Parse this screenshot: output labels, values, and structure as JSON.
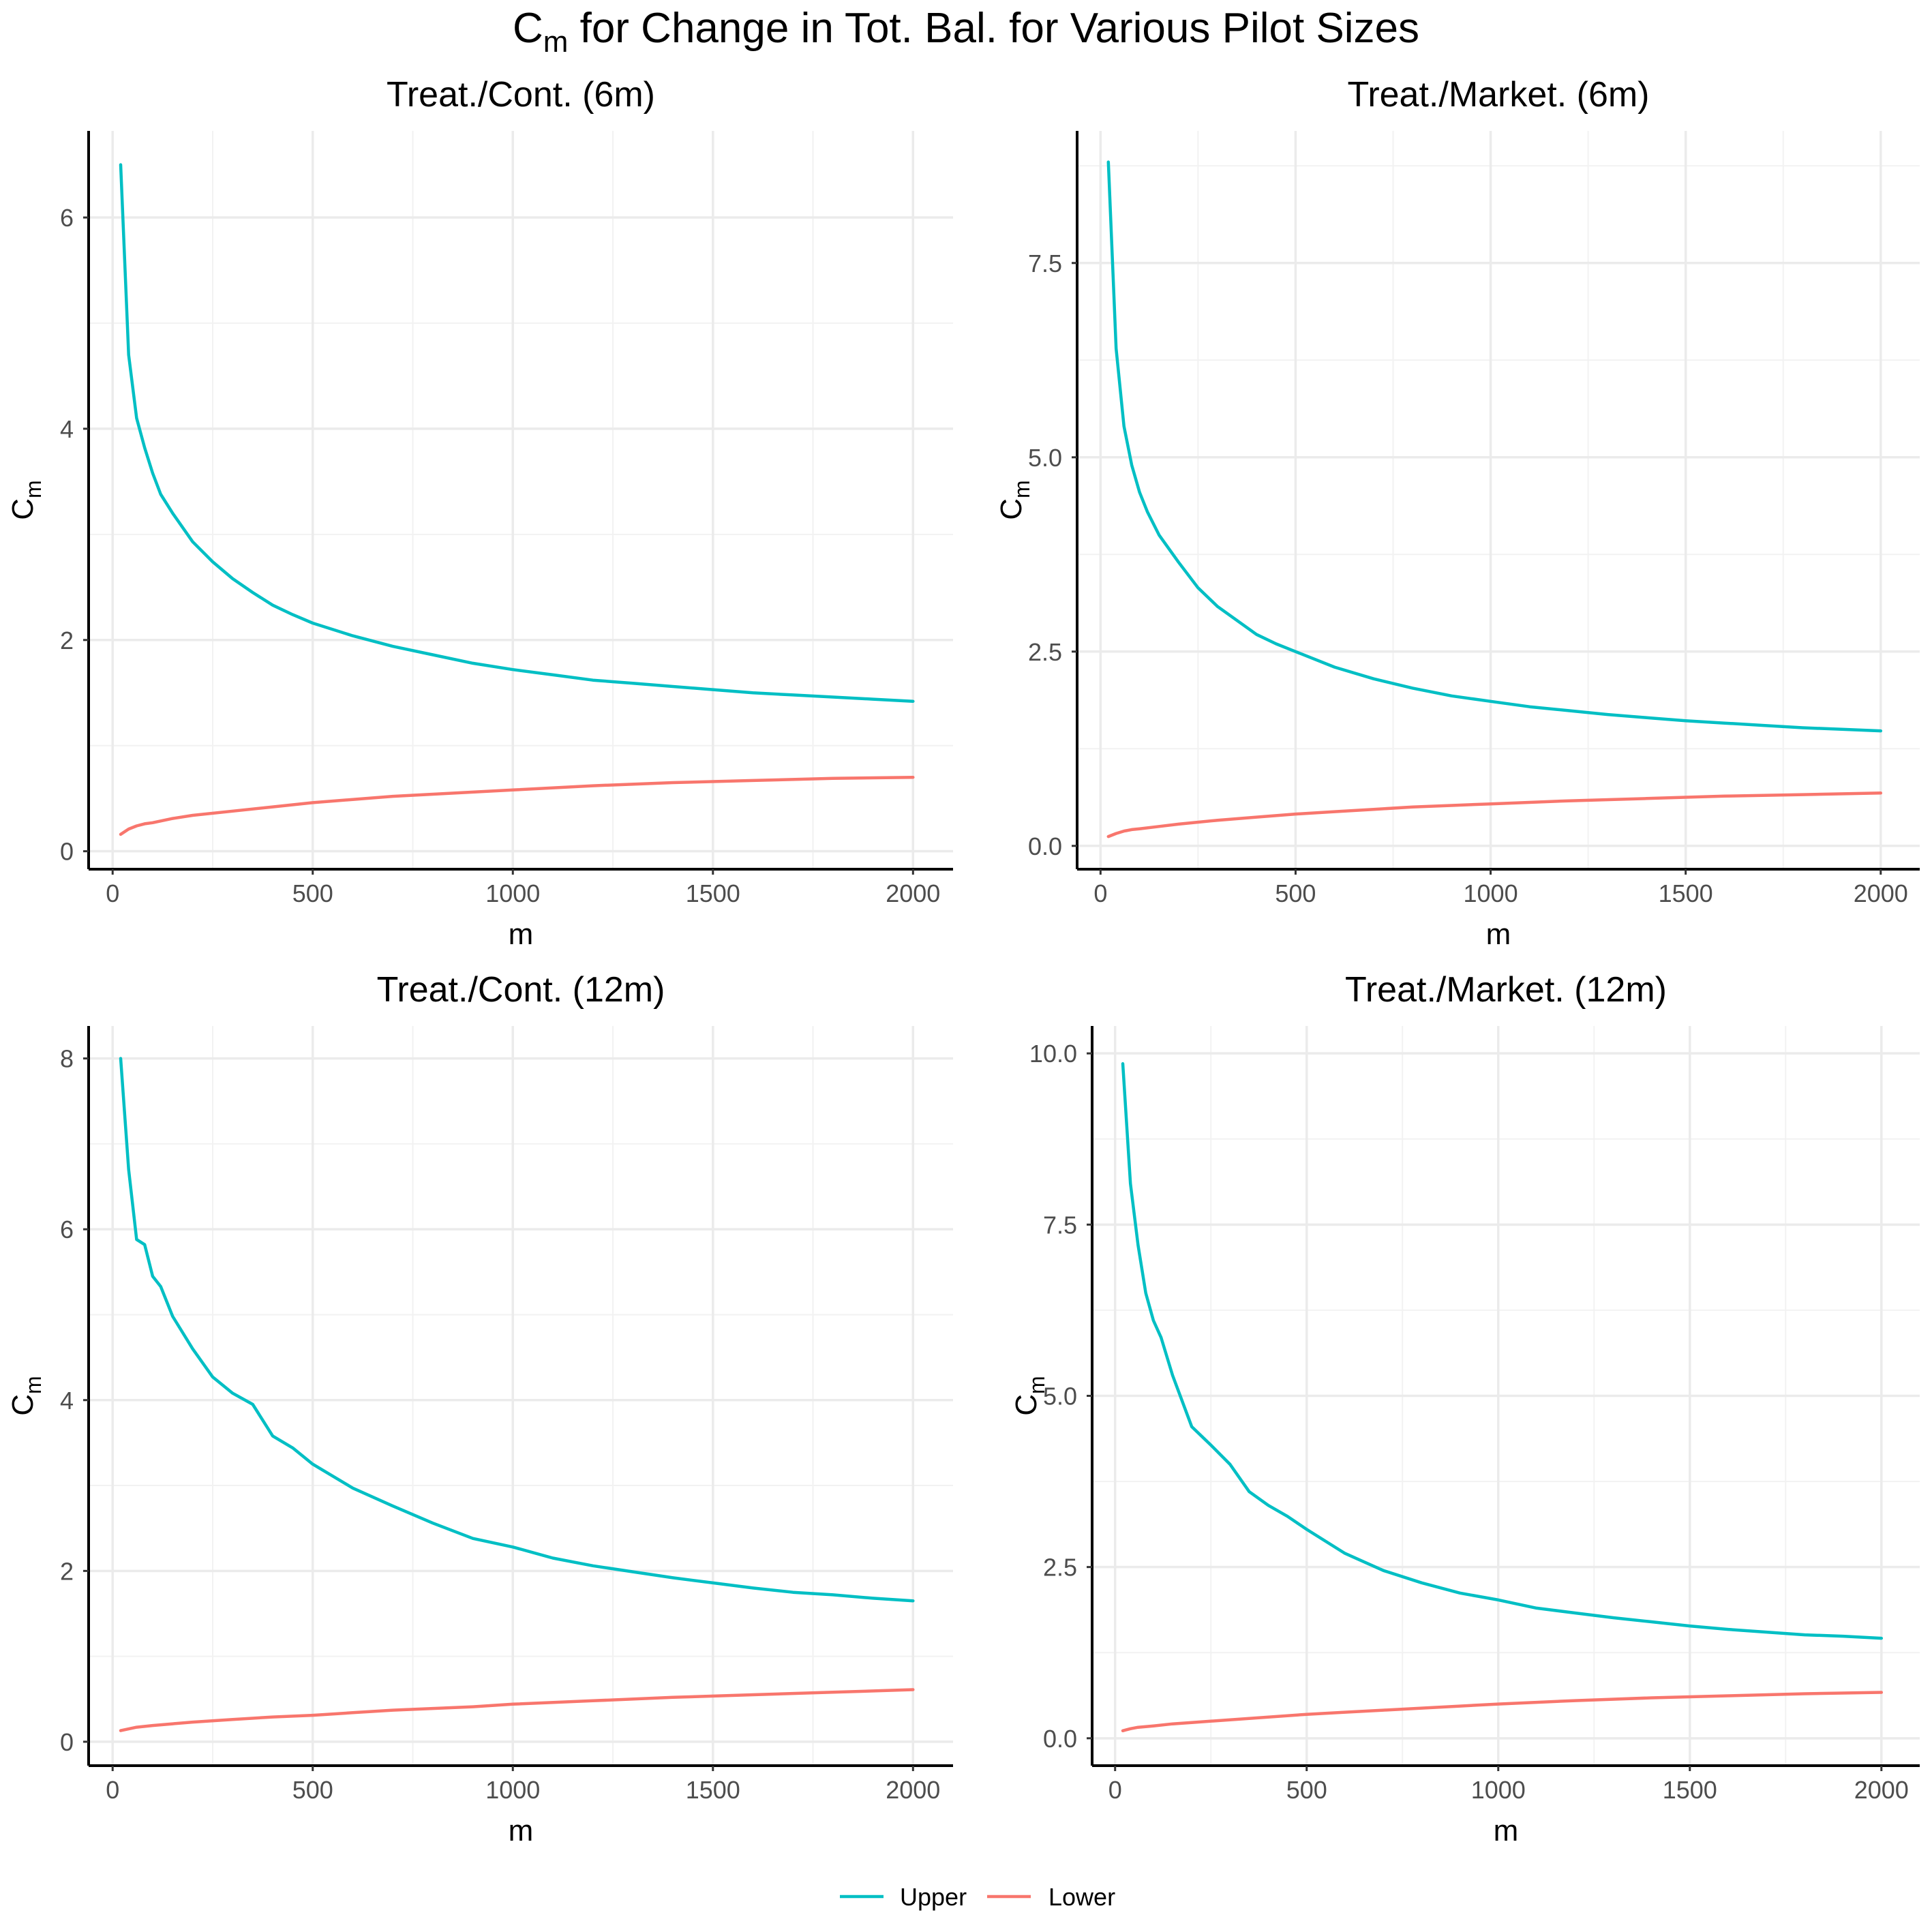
{
  "figure": {
    "title_main": "C",
    "title_sub": "m",
    "title_rest": " for Change in Tot. Bal. for Various Pilot Sizes"
  },
  "legend": {
    "items": [
      {
        "label": "Upper",
        "color": "#00BFC4"
      },
      {
        "label": "Lower",
        "color": "#F8766D"
      }
    ]
  },
  "chart_data": [
    {
      "type": "line",
      "title": "Treat./Cont. (6m)",
      "xlabel": "m",
      "ylabel_main": "C",
      "ylabel_sub": "m",
      "xlim": [
        -60,
        2100
      ],
      "ylim": [
        -0.17,
        6.82
      ],
      "xticks": [
        0,
        500,
        1000,
        1500,
        2000
      ],
      "xtick_labels": [
        "0",
        "500",
        "1000",
        "1500",
        "2000"
      ],
      "yticks": [
        0,
        2,
        4,
        6
      ],
      "ytick_labels": [
        "0",
        "2",
        "4",
        "6"
      ],
      "series": [
        {
          "name": "Upper",
          "color": "#00BFC4",
          "x": [
            20,
            40,
            60,
            80,
            100,
            120,
            150,
            200,
            250,
            300,
            350,
            400,
            450,
            500,
            600,
            700,
            800,
            900,
            1000,
            1100,
            1200,
            1300,
            1400,
            1500,
            1600,
            1700,
            1800,
            1900,
            2000
          ],
          "y": [
            6.5,
            4.7,
            4.1,
            3.82,
            3.58,
            3.38,
            3.2,
            2.93,
            2.74,
            2.58,
            2.45,
            2.33,
            2.24,
            2.16,
            2.04,
            1.94,
            1.86,
            1.78,
            1.72,
            1.67,
            1.62,
            1.59,
            1.56,
            1.53,
            1.5,
            1.48,
            1.46,
            1.44,
            1.42
          ]
        },
        {
          "name": "Lower",
          "color": "#F8766D",
          "x": [
            20,
            40,
            60,
            80,
            100,
            150,
            200,
            300,
            400,
            500,
            600,
            700,
            800,
            900,
            1000,
            1200,
            1400,
            1600,
            1800,
            2000
          ],
          "y": [
            0.16,
            0.21,
            0.24,
            0.26,
            0.27,
            0.31,
            0.34,
            0.38,
            0.42,
            0.46,
            0.49,
            0.52,
            0.54,
            0.56,
            0.58,
            0.62,
            0.65,
            0.67,
            0.69,
            0.7
          ]
        }
      ]
    },
    {
      "type": "line",
      "title": "Treat./Market. (6m)",
      "xlabel": "m",
      "ylabel_main": "C",
      "ylabel_sub": "m",
      "xlim": [
        -60,
        2100
      ],
      "ylim": [
        -0.3,
        9.2
      ],
      "xticks": [
        0,
        500,
        1000,
        1500,
        2000
      ],
      "xtick_labels": [
        "0",
        "500",
        "1000",
        "1500",
        "2000"
      ],
      "yticks": [
        0,
        2.5,
        5,
        7.5
      ],
      "ytick_labels": [
        "0.0",
        "2.5",
        "5.0",
        "7.5"
      ],
      "series": [
        {
          "name": "Upper",
          "color": "#00BFC4",
          "x": [
            20,
            40,
            60,
            80,
            100,
            120,
            150,
            200,
            250,
            300,
            350,
            400,
            450,
            500,
            600,
            700,
            800,
            900,
            1000,
            1100,
            1200,
            1300,
            1400,
            1500,
            1600,
            1700,
            1800,
            1900,
            2000
          ],
          "y": [
            8.8,
            6.4,
            5.4,
            4.9,
            4.55,
            4.3,
            4.0,
            3.65,
            3.32,
            3.08,
            2.9,
            2.72,
            2.6,
            2.5,
            2.3,
            2.15,
            2.03,
            1.93,
            1.86,
            1.79,
            1.74,
            1.69,
            1.65,
            1.61,
            1.58,
            1.55,
            1.52,
            1.5,
            1.48
          ]
        },
        {
          "name": "Lower",
          "color": "#F8766D",
          "x": [
            20,
            40,
            60,
            80,
            100,
            150,
            200,
            300,
            400,
            500,
            600,
            700,
            800,
            900,
            1000,
            1200,
            1400,
            1600,
            1800,
            2000
          ],
          "y": [
            0.12,
            0.16,
            0.19,
            0.21,
            0.22,
            0.25,
            0.28,
            0.33,
            0.37,
            0.41,
            0.44,
            0.47,
            0.5,
            0.52,
            0.54,
            0.58,
            0.61,
            0.64,
            0.66,
            0.68
          ]
        }
      ]
    },
    {
      "type": "line",
      "title": "Treat./Cont. (12m)",
      "xlabel": "m",
      "ylabel_main": "C",
      "ylabel_sub": "m",
      "xlim": [
        -60,
        2100
      ],
      "ylim": [
        -0.28,
        8.38
      ],
      "xticks": [
        0,
        500,
        1000,
        1500,
        2000
      ],
      "xtick_labels": [
        "0",
        "500",
        "1000",
        "1500",
        "2000"
      ],
      "yticks": [
        0,
        2,
        4,
        6,
        8
      ],
      "ytick_labels": [
        "0",
        "2",
        "4",
        "6",
        "8"
      ],
      "series": [
        {
          "name": "Upper",
          "color": "#00BFC4",
          "x": [
            20,
            40,
            60,
            80,
            100,
            120,
            150,
            200,
            250,
            300,
            350,
            400,
            450,
            500,
            600,
            700,
            800,
            900,
            1000,
            1100,
            1200,
            1300,
            1400,
            1500,
            1600,
            1700,
            1800,
            1900,
            2000
          ],
          "y": [
            8.0,
            6.7,
            5.88,
            5.82,
            5.45,
            5.33,
            4.98,
            4.6,
            4.27,
            4.08,
            3.95,
            3.58,
            3.44,
            3.25,
            2.97,
            2.76,
            2.56,
            2.38,
            2.28,
            2.15,
            2.06,
            1.99,
            1.92,
            1.86,
            1.8,
            1.75,
            1.72,
            1.68,
            1.65
          ]
        },
        {
          "name": "Lower",
          "color": "#F8766D",
          "x": [
            20,
            40,
            60,
            80,
            100,
            150,
            200,
            300,
            400,
            500,
            600,
            700,
            800,
            900,
            1000,
            1200,
            1400,
            1600,
            1800,
            2000
          ],
          "y": [
            0.13,
            0.15,
            0.17,
            0.18,
            0.19,
            0.21,
            0.23,
            0.26,
            0.29,
            0.31,
            0.34,
            0.37,
            0.39,
            0.41,
            0.44,
            0.48,
            0.52,
            0.55,
            0.58,
            0.61
          ]
        }
      ]
    },
    {
      "type": "line",
      "title": "Treat./Market. (12m)",
      "xlabel": "m",
      "ylabel_main": "C",
      "ylabel_sub": "m",
      "xlim": [
        -60,
        2100
      ],
      "ylim": [
        -0.4,
        10.4
      ],
      "xticks": [
        0,
        500,
        1000,
        1500,
        2000
      ],
      "xtick_labels": [
        "0",
        "500",
        "1000",
        "1500",
        "2000"
      ],
      "yticks": [
        0,
        2.5,
        5,
        7.5,
        10
      ],
      "ytick_labels": [
        "0.0",
        "2.5",
        "5.0",
        "7.5",
        "10.0"
      ],
      "series": [
        {
          "name": "Upper",
          "color": "#00BFC4",
          "x": [
            20,
            40,
            60,
            80,
            100,
            120,
            150,
            200,
            250,
            300,
            350,
            400,
            450,
            500,
            600,
            700,
            800,
            900,
            1000,
            1100,
            1200,
            1300,
            1400,
            1500,
            1600,
            1700,
            1800,
            1900,
            2000
          ],
          "y": [
            9.85,
            8.1,
            7.2,
            6.5,
            6.1,
            5.85,
            5.3,
            4.55,
            4.28,
            4.0,
            3.6,
            3.4,
            3.24,
            3.05,
            2.7,
            2.45,
            2.27,
            2.12,
            2.02,
            1.9,
            1.83,
            1.76,
            1.7,
            1.64,
            1.59,
            1.55,
            1.51,
            1.49,
            1.46
          ]
        },
        {
          "name": "Lower",
          "color": "#F8766D",
          "x": [
            20,
            40,
            60,
            80,
            100,
            150,
            200,
            300,
            400,
            500,
            600,
            700,
            800,
            900,
            1000,
            1200,
            1400,
            1600,
            1800,
            2000
          ],
          "y": [
            0.11,
            0.14,
            0.16,
            0.17,
            0.18,
            0.21,
            0.23,
            0.27,
            0.31,
            0.35,
            0.38,
            0.41,
            0.44,
            0.47,
            0.5,
            0.55,
            0.59,
            0.62,
            0.65,
            0.67
          ]
        }
      ]
    }
  ]
}
